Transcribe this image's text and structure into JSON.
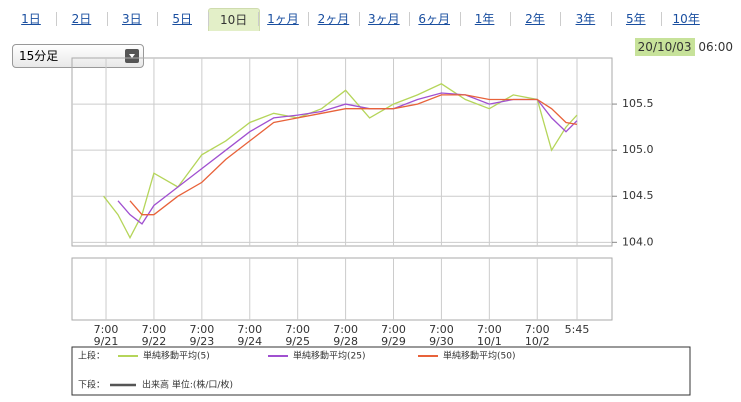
{
  "tabs": [
    "1日",
    "2日",
    "3日",
    "5日",
    "10日",
    "1ヶ月",
    "2ヶ月",
    "3ヶ月",
    "6ヶ月",
    "1年",
    "2年",
    "3年",
    "5年",
    "10年"
  ],
  "selected_tab_index": 4,
  "interval_select": "15分足",
  "timestamp_date": "20/10/03",
  "timestamp_time": "06:00",
  "chart_data": {
    "type": "line",
    "x": [
      -0.05,
      0.25,
      0.5,
      0.75,
      1,
      1.5,
      2,
      2.5,
      3,
      3.5,
      4,
      4.5,
      5,
      5.5,
      6,
      6.5,
      7,
      7.5,
      8,
      8.5,
      9,
      9.3,
      9.6,
      9.83
    ],
    "series": [
      {
        "name": "単純移動平均(5)",
        "color": "#b5d55a",
        "values": [
          104.5,
          104.3,
          104.05,
          104.3,
          104.75,
          104.6,
          104.95,
          105.1,
          105.3,
          105.4,
          105.35,
          105.45,
          105.65,
          105.35,
          105.5,
          105.6,
          105.72,
          105.55,
          105.45,
          105.6,
          105.55,
          105.0,
          105.25,
          105.38
        ]
      },
      {
        "name": "単純移動平均(25)",
        "color": "#a050d0",
        "values": [
          null,
          104.45,
          104.3,
          104.2,
          104.4,
          104.6,
          104.8,
          105.0,
          105.2,
          105.35,
          105.38,
          105.42,
          105.5,
          105.45,
          105.45,
          105.55,
          105.62,
          105.6,
          105.5,
          105.55,
          105.55,
          105.35,
          105.2,
          105.32
        ]
      },
      {
        "name": "単純移動平均(50)",
        "color": "#e8623a",
        "values": [
          null,
          null,
          104.45,
          104.3,
          104.3,
          104.5,
          104.65,
          104.9,
          105.1,
          105.3,
          105.35,
          105.4,
          105.45,
          105.45,
          105.45,
          105.5,
          105.6,
          105.6,
          105.55,
          105.55,
          105.55,
          105.45,
          105.3,
          105.28
        ]
      }
    ],
    "xlim": [
      -0.71,
      10.56
    ],
    "xticks": [
      {
        "value": 0,
        "label": "7:00"
      },
      {
        "value": 1,
        "label": "7:00"
      },
      {
        "value": 2,
        "label": "7:00"
      },
      {
        "value": 3,
        "label": "7:00"
      },
      {
        "value": 4,
        "label": "7:00"
      },
      {
        "value": 5,
        "label": "7:00"
      },
      {
        "value": 6,
        "label": "7:00"
      },
      {
        "value": 7,
        "label": "7:00"
      },
      {
        "value": 8,
        "label": "7:00"
      },
      {
        "value": 9,
        "label": "7:00"
      },
      {
        "value": 9.83,
        "label": "5:45"
      }
    ],
    "x_dates": [
      "9/21",
      "9/22",
      "9/23",
      "9/24",
      "9/25",
      "9/28",
      "9/29",
      "9/30",
      "10/1",
      "10/2",
      null
    ],
    "ylim": [
      103.96,
      106.0
    ],
    "yticks": [
      {
        "value": 104,
        "label": "104.0"
      },
      104.5,
      {
        "value": 105,
        "label": "105.0"
      },
      105.5
    ],
    "grid": true,
    "legend_upper": "上段：",
    "legend_lower": "下段：",
    "volume_legend": "出来高 単位:(株/口/枚)",
    "volume_color": "#555555"
  }
}
